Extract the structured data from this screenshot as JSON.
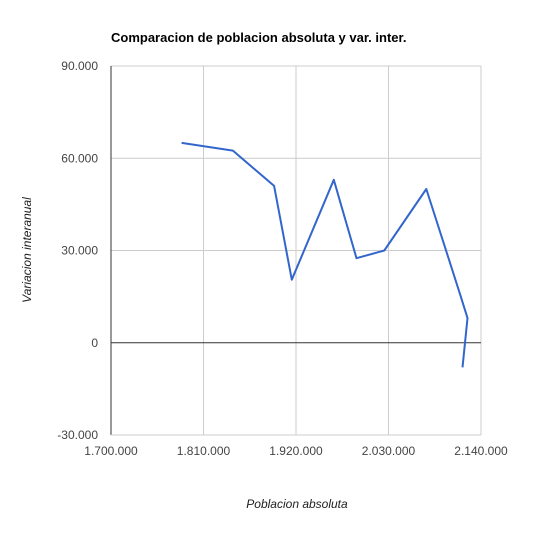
{
  "chart_data": {
    "type": "line",
    "title": "Comparacion de poblacion absoluta y var. inter.",
    "xlabel": "Poblacion absoluta",
    "ylabel": "Variacion interanual",
    "xlim": [
      1700000,
      2140000
    ],
    "ylim": [
      -30000,
      90000
    ],
    "x_ticks": [
      {
        "value": 1700000,
        "label": "1.700.000"
      },
      {
        "value": 1810000,
        "label": "1.810.000"
      },
      {
        "value": 1920000,
        "label": "1.920.000"
      },
      {
        "value": 2030000,
        "label": "2.030.000"
      },
      {
        "value": 2140000,
        "label": "2.140.000"
      }
    ],
    "y_ticks": [
      {
        "value": 90000,
        "label": "90.000"
      },
      {
        "value": 60000,
        "label": "60.000"
      },
      {
        "value": 30000,
        "label": "30.000"
      },
      {
        "value": 0,
        "label": "0"
      },
      {
        "value": -30000,
        "label": "-30.000"
      }
    ],
    "grid": true,
    "legend": "none",
    "series": [
      {
        "color": "#3366cc",
        "points": [
          {
            "x": 1784000,
            "y": 65000
          },
          {
            "x": 1845000,
            "y": 62500
          },
          {
            "x": 1894000,
            "y": 51000
          },
          {
            "x": 1915000,
            "y": 20500
          },
          {
            "x": 1965000,
            "y": 53000
          },
          {
            "x": 1992000,
            "y": 27500
          },
          {
            "x": 2025000,
            "y": 30000
          },
          {
            "x": 2075000,
            "y": 50000
          },
          {
            "x": 2102000,
            "y": 27000
          },
          {
            "x": 2116000,
            "y": 15000
          },
          {
            "x": 2124000,
            "y": 8000
          },
          {
            "x": 2118000,
            "y": -8000
          }
        ]
      }
    ]
  }
}
